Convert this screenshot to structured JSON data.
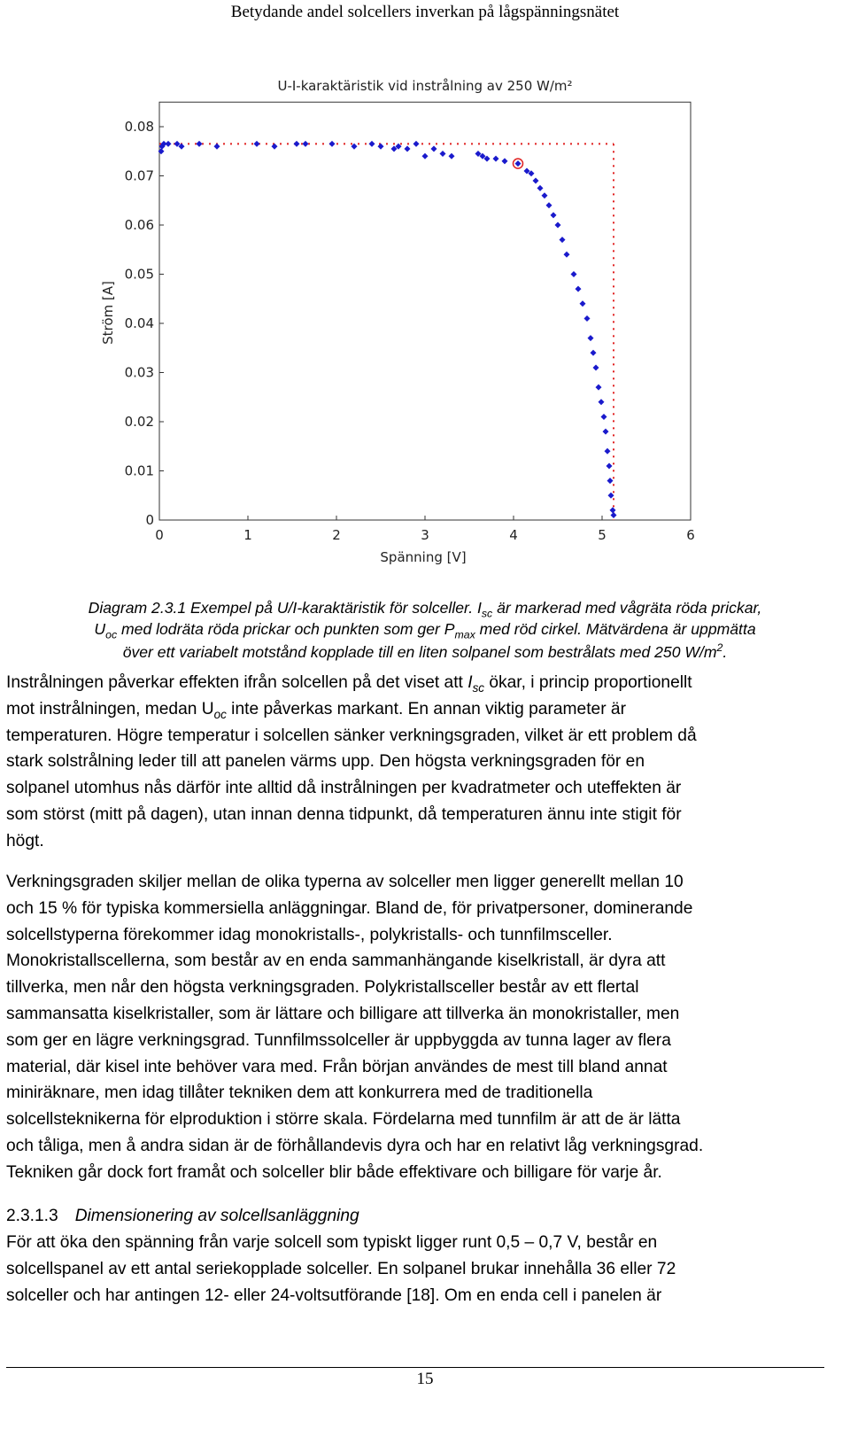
{
  "header": {
    "title": "Betydande andel solcellers inverkan på lågspänningsnätet"
  },
  "chart_data": {
    "type": "scatter",
    "title": "U-I-karaktäristik vid instrålning av 250 W/m²",
    "x_label": "Spänning [V]",
    "y_label": "Ström [A]",
    "xlim": [
      0,
      6
    ],
    "xticks": [
      0,
      1,
      2,
      3,
      4,
      5,
      6
    ],
    "ylim": [
      0,
      0.085
    ],
    "yticks": [
      0,
      0.01,
      0.02,
      0.03,
      0.04,
      0.05,
      0.06,
      0.07,
      0.08
    ],
    "series": [
      {
        "color": "#1a1acc",
        "x": [
          0.02,
          0.03,
          0.05,
          0.1,
          0.2,
          0.25,
          0.45,
          0.65,
          1.1,
          1.3,
          1.55,
          1.65,
          1.95,
          2.2,
          2.4,
          2.5,
          2.65,
          2.7,
          2.8,
          2.9,
          3.0,
          3.1,
          3.2,
          3.3,
          3.6,
          3.65,
          3.7,
          3.8,
          3.9,
          4.05,
          4.15,
          4.2,
          4.25,
          4.3,
          4.35,
          4.4,
          4.45,
          4.5,
          4.55,
          4.6,
          4.68,
          4.73,
          4.78,
          4.83,
          4.87,
          4.9,
          4.93,
          4.96,
          4.99,
          5.02,
          5.04,
          5.06,
          5.08,
          5.09,
          5.1,
          5.12,
          5.13
        ],
        "y": [
          0.075,
          0.076,
          0.0765,
          0.0765,
          0.0765,
          0.076,
          0.0765,
          0.076,
          0.0765,
          0.076,
          0.0765,
          0.0765,
          0.0765,
          0.076,
          0.0765,
          0.076,
          0.0755,
          0.076,
          0.0755,
          0.0765,
          0.074,
          0.0755,
          0.0745,
          0.074,
          0.0745,
          0.074,
          0.0735,
          0.0735,
          0.073,
          0.0725,
          0.071,
          0.0705,
          0.069,
          0.0675,
          0.066,
          0.064,
          0.062,
          0.06,
          0.057,
          0.054,
          0.05,
          0.047,
          0.044,
          0.041,
          0.037,
          0.034,
          0.031,
          0.027,
          0.024,
          0.021,
          0.018,
          0.014,
          0.011,
          0.008,
          0.005,
          0.002,
          0.001
        ]
      }
    ],
    "isc": 0.0765,
    "uoc": 5.13,
    "pmax": [
      4.05,
      0.0725
    ],
    "marker_color": "#e02020"
  },
  "caption": [
    [
      "Diagram 2.3.1 Exempel på U/I-karaktäristik för solceller. I",
      {
        "sub": "sc"
      },
      " är markerad med vågräta röda prickar,"
    ],
    [
      "U",
      {
        "sub": "oc"
      },
      " med lodräta röda prickar och punkten som ger P",
      {
        "sub": "max"
      },
      " med röd cirkel. Mätvärdena är uppmätta"
    ],
    [
      "över ett variabelt motstånd kopplade till en liten solpanel som bestrålats med 250 W/m",
      {
        "sup": "2"
      },
      "."
    ]
  ],
  "paragraphs": [
    [
      [
        "Instrålningen påverkar effekten ifrån solcellen på det viset att ",
        {
          "em": "I"
        },
        {
          "sub": "sc"
        },
        " ökar, i princip proportionellt"
      ],
      [
        "mot instrålningen, medan U",
        {
          "sub": "oc"
        },
        " inte påverkas markant. En annan viktig parameter är"
      ],
      [
        "temperaturen. Högre temperatur i solcellen sänker verkningsgraden, vilket är ett problem då"
      ],
      [
        "stark solstrålning leder till att panelen värms upp. Den högsta verkningsgraden för en"
      ],
      [
        "solpanel utomhus nås därför inte alltid då instrålningen per kvadratmeter och uteffekten är"
      ],
      [
        "som störst (mitt på dagen), utan innan denna tidpunkt, då temperaturen ännu inte stigit för"
      ],
      [
        "högt."
      ]
    ],
    [
      [
        "Verkningsgraden skiljer mellan de olika typerna av solceller men ligger generellt mellan 10"
      ],
      [
        "och 15 % för typiska kommersiella anläggningar. Bland de, för privatpersoner, dominerande"
      ],
      [
        "solcellstyperna förekommer idag monokristalls-, polykristalls- och tunnfilmsceller."
      ],
      [
        "Monokristallscellerna, som består av en enda sammanhängande kiselkristall, är dyra att"
      ],
      [
        "tillverka, men når den högsta verkningsgraden. Polykristallsceller består av ett flertal"
      ],
      [
        "sammansatta kiselkristaller, som är lättare och billigare att tillverka än monokristaller, men"
      ],
      [
        "som ger en lägre verkningsgrad. Tunnfilmssolceller är uppbyggda av tunna lager av flera"
      ],
      [
        "material, där kisel inte behöver vara med. Från början användes de mest till bland annat"
      ],
      [
        "miniräknare, men idag tillåter tekniken dem att konkurrera med de traditionella"
      ],
      [
        "solcellsteknikerna för elproduktion i större skala. Fördelarna med tunnfilm är att de är lätta"
      ],
      [
        "och tåliga, men å andra sidan är de förhållandevis dyra och har en relativt låg verkningsgrad."
      ],
      [
        "Tekniken går dock fort framåt och solceller blir både effektivare och billigare för varje år."
      ]
    ]
  ],
  "section": {
    "number": "2.3.1.3",
    "title": "Dimensionering av solcellsanläggning",
    "lines": [
      [
        "För att öka den spänning från varje solcell som typiskt ligger runt 0,5 – 0,7 V, består en"
      ],
      [
        "solcellspanel av ett antal seriekopplade solceller. En solpanel brukar innehålla 36 eller 72"
      ],
      [
        "solceller och har antingen 12- eller 24-voltsutförande [18]. Om en enda cell i panelen är"
      ]
    ]
  },
  "footer": {
    "page": "15"
  }
}
